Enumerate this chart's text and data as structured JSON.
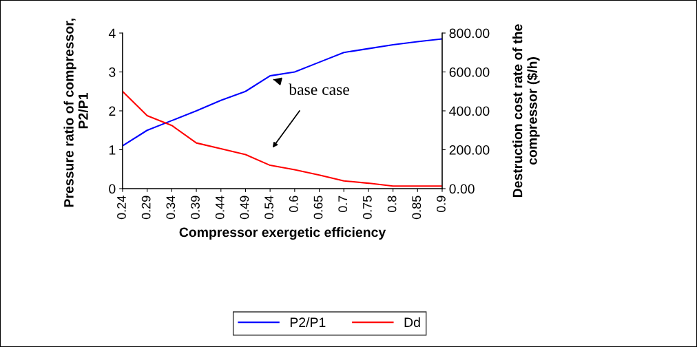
{
  "chart_data": {
    "type": "line",
    "categories": [
      "0.24",
      "0.29",
      "0.34",
      "0.39",
      "0.44",
      "0.49",
      "0.54",
      "0.6",
      "0.65",
      "0.7",
      "0.75",
      "0.8",
      "0.85",
      "0.9"
    ],
    "series": [
      {
        "name": "P2/P1",
        "color": "#0000ff",
        "values": [
          1.1,
          1.5,
          1.75,
          2.0,
          2.27,
          2.5,
          2.9,
          3.0,
          3.25,
          3.5,
          3.6,
          3.7,
          3.78,
          3.85
        ]
      },
      {
        "name": "Dd",
        "color": "#ff0000",
        "axis": "y2",
        "values": [
          500,
          375,
          325,
          235,
          205,
          175,
          120,
          97,
          70,
          40,
          28,
          13,
          13,
          13
        ]
      }
    ],
    "xlabel": "Compressor exergetic efficiency",
    "ylabel": "Pressure ratio of compressor,  P2/P1",
    "y2label": "Destruction cost rate of the compressor ($/h)",
    "ylim": [
      0,
      4
    ],
    "yticks": [
      0,
      1,
      2,
      3,
      4
    ],
    "y2lim": [
      0,
      800
    ],
    "y2ticks": [
      {
        "value": 0,
        "label": "0.00"
      },
      {
        "value": 200,
        "label": "200.00"
      },
      {
        "value": 400,
        "label": "400.00"
      },
      {
        "value": 600,
        "label": "600.00"
      },
      {
        "value": 800,
        "label": "800.00"
      }
    ],
    "annotations": [
      {
        "text": "base case",
        "x": "0.54",
        "y": 2.9
      }
    ],
    "legend": "bottom",
    "grid": false,
    "marker": "none",
    "line_style": "solid"
  }
}
